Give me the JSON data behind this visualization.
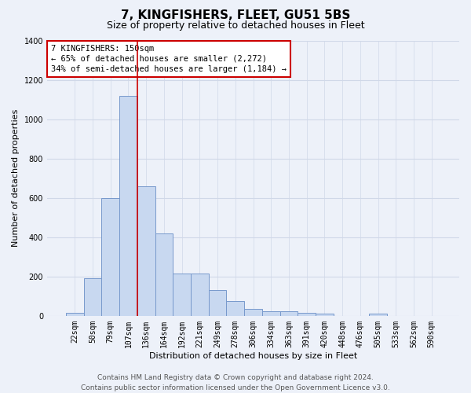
{
  "title": "7, KINGFISHERS, FLEET, GU51 5BS",
  "subtitle": "Size of property relative to detached houses in Fleet",
  "xlabel": "Distribution of detached houses by size in Fleet",
  "ylabel": "Number of detached properties",
  "bar_color": "#c8d8f0",
  "bar_edge_color": "#7799cc",
  "categories": [
    "22sqm",
    "50sqm",
    "79sqm",
    "107sqm",
    "136sqm",
    "164sqm",
    "192sqm",
    "221sqm",
    "249sqm",
    "278sqm",
    "306sqm",
    "334sqm",
    "363sqm",
    "391sqm",
    "420sqm",
    "448sqm",
    "476sqm",
    "505sqm",
    "533sqm",
    "562sqm",
    "590sqm"
  ],
  "values": [
    15,
    190,
    600,
    1120,
    660,
    420,
    215,
    215,
    130,
    75,
    35,
    25,
    25,
    15,
    10,
    0,
    0,
    10,
    0,
    0,
    0
  ],
  "ylim": [
    0,
    1400
  ],
  "yticks": [
    0,
    200,
    400,
    600,
    800,
    1000,
    1200,
    1400
  ],
  "property_line_x": 3.5,
  "vline_color": "#cc0000",
  "annotation_title": "7 KINGFISHERS: 150sqm",
  "annotation_line1": "← 65% of detached houses are smaller (2,272)",
  "annotation_line2": "34% of semi-detached houses are larger (1,184) →",
  "annotation_box_facecolor": "#ffffff",
  "annotation_box_edgecolor": "#cc0000",
  "footer_line1": "Contains HM Land Registry data © Crown copyright and database right 2024.",
  "footer_line2": "Contains public sector information licensed under the Open Government Licence v3.0.",
  "fig_facecolor": "#edf1f9",
  "plot_facecolor": "#edf1f9",
  "grid_color": "#d0d8e8",
  "title_fontsize": 11,
  "subtitle_fontsize": 9,
  "axis_label_fontsize": 8,
  "tick_fontsize": 7,
  "annotation_fontsize": 7.5,
  "footer_fontsize": 6.5
}
